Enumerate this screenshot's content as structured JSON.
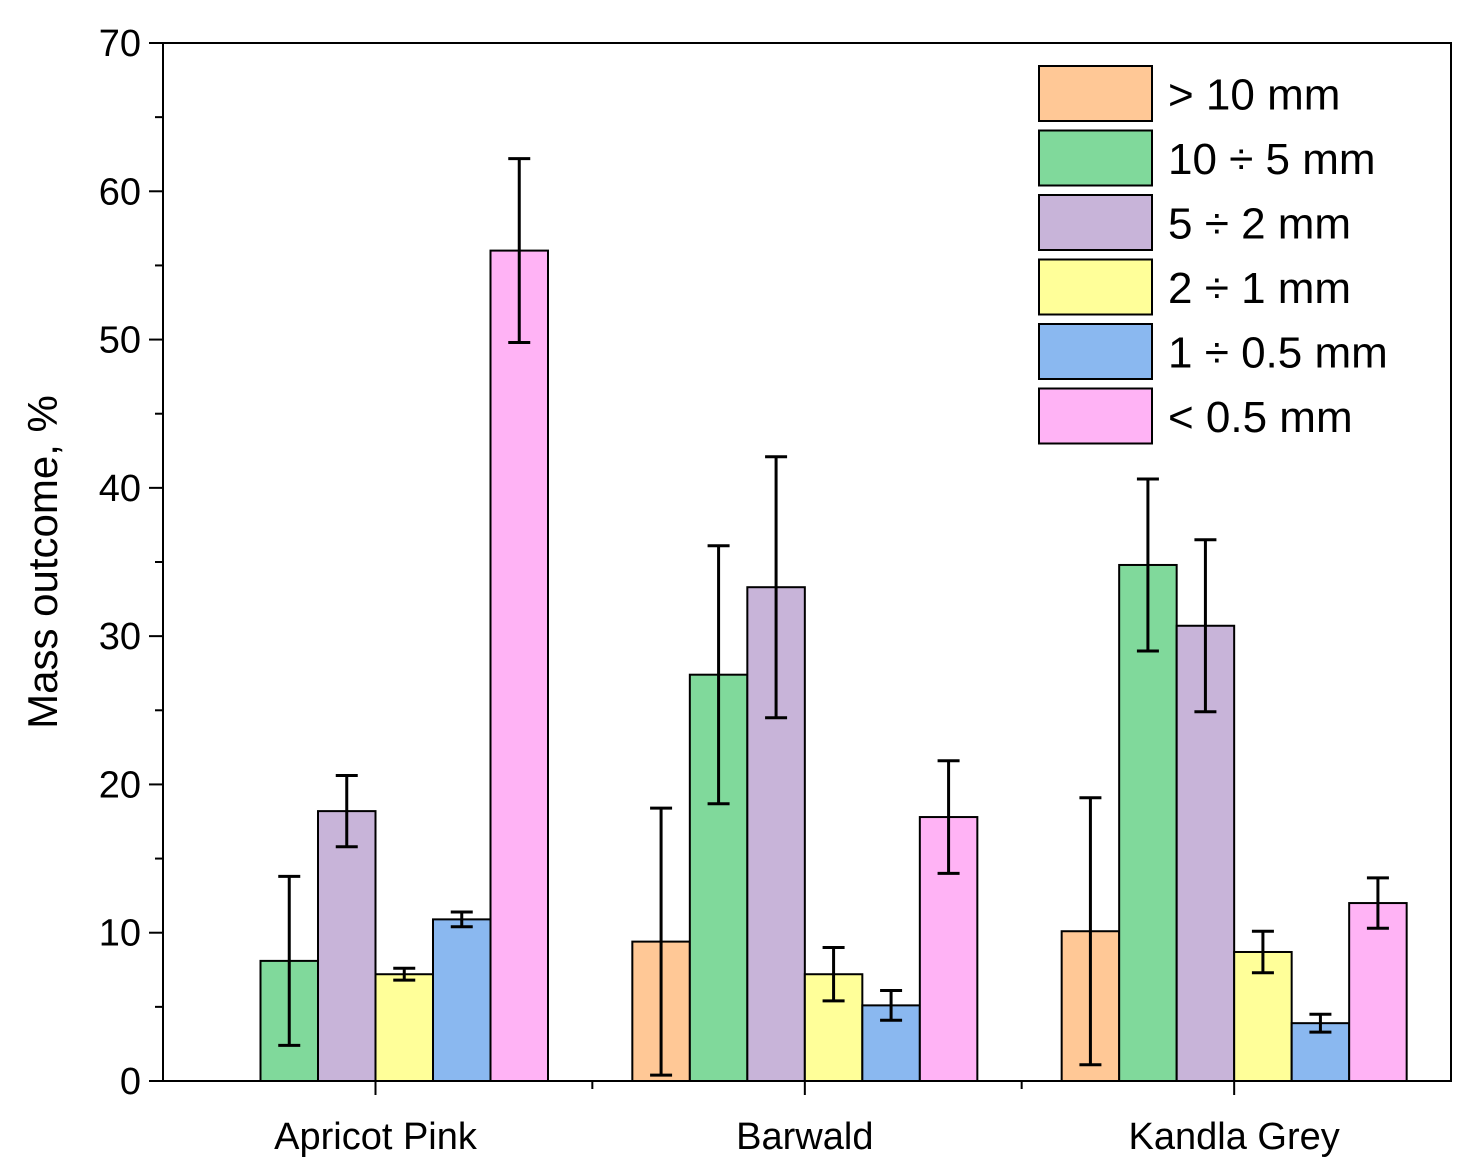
{
  "chart_data": {
    "type": "bar",
    "title": "",
    "xlabel": "",
    "ylabel": "Mass outcome, %",
    "ylim": [
      0,
      70
    ],
    "yticks": [
      0,
      10,
      20,
      30,
      40,
      50,
      60,
      70
    ],
    "categories": [
      "Apricot Pink",
      "Barwald",
      "Kandla Grey"
    ],
    "legend_position": "top-right",
    "series": [
      {
        "name": "> 10 mm",
        "color": "#ffc896",
        "values": [
          null,
          9.4,
          10.1
        ],
        "errors": [
          null,
          9.0,
          9.0
        ]
      },
      {
        "name": "10 ÷ 5 mm",
        "color": "#80d99b",
        "values": [
          8.1,
          27.4,
          34.8
        ],
        "errors": [
          5.7,
          8.7,
          5.8
        ]
      },
      {
        "name": "5 ÷ 2 mm",
        "color": "#c8b4d9",
        "values": [
          18.2,
          33.3,
          30.7
        ],
        "errors": [
          2.4,
          8.8,
          5.8
        ]
      },
      {
        "name": "2 ÷ 1 mm",
        "color": "#ffff99",
        "values": [
          7.2,
          7.2,
          8.7
        ],
        "errors": [
          0.4,
          1.8,
          1.4
        ]
      },
      {
        "name": "1 ÷ 0.5 mm",
        "color": "#8ab8f0",
        "values": [
          10.9,
          5.1,
          3.9
        ],
        "errors": [
          0.5,
          1.0,
          0.6
        ]
      },
      {
        "name": "< 0.5 mm",
        "color": "#ffb3f5",
        "values": [
          56.0,
          17.8,
          12.0
        ],
        "errors": [
          6.2,
          3.8,
          1.7
        ]
      }
    ]
  }
}
